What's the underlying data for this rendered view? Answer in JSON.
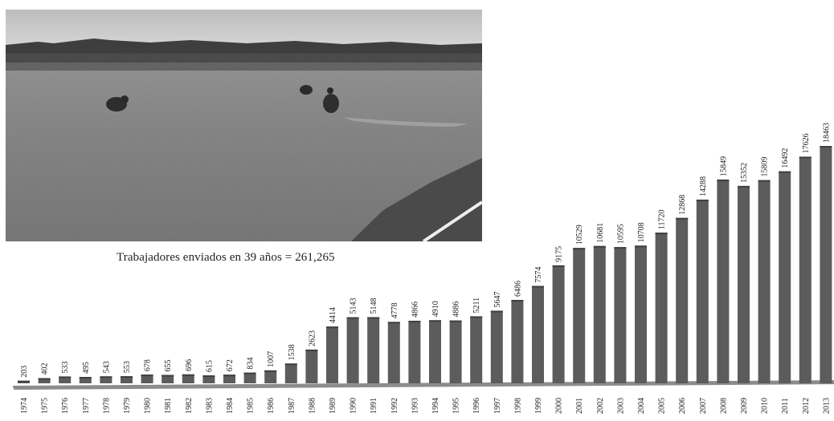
{
  "photo": {
    "alt_icon": "cranberry-field-workers-photo"
  },
  "caption": "Trabajadores enviados en 39 años = 261,265",
  "colors": {
    "bar": "#5c5c5c",
    "bar_top": "#3f3f3f",
    "floor": "#8c8c8c",
    "text": "#222222"
  },
  "chart_data": {
    "type": "bar",
    "title": "Trabajadores enviados en 39 años = 261,265",
    "xlabel": "",
    "ylabel": "",
    "ylim": [
      0,
      18463
    ],
    "grid": false,
    "categories": [
      "1974",
      "1975",
      "1976",
      "1977",
      "1978",
      "1979",
      "1980",
      "1981",
      "1982",
      "1983",
      "1984",
      "1985",
      "1986",
      "1987",
      "1988",
      "1989",
      "1990",
      "1991",
      "1992",
      "1993",
      "1994",
      "1995",
      "1996",
      "1997",
      "1998",
      "1999",
      "2000",
      "2001",
      "2002",
      "2003",
      "2004",
      "2005",
      "2006",
      "2007",
      "2008",
      "2009",
      "2010",
      "2011",
      "2012",
      "2013"
    ],
    "values": [
      203,
      402,
      533,
      495,
      543,
      553,
      678,
      655,
      696,
      615,
      672,
      834,
      1007,
      1538,
      2623,
      4414,
      5143,
      5148,
      4778,
      4866,
      4910,
      4886,
      5211,
      5647,
      6486,
      7574,
      9175,
      10529,
      10681,
      10595,
      10708,
      11720,
      12868,
      14288,
      15849,
      15352,
      15809,
      16492,
      17626,
      18463
    ]
  }
}
